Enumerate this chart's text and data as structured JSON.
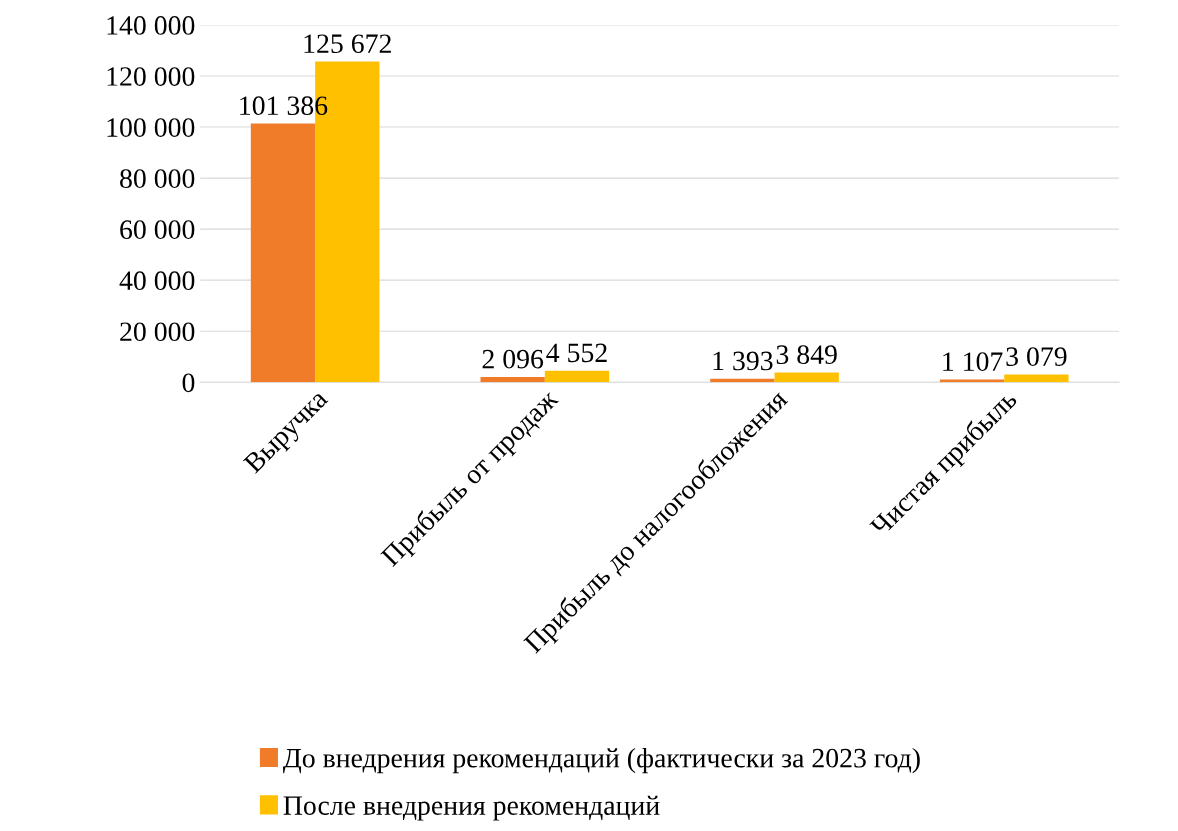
{
  "chart_data": {
    "type": "bar",
    "categories": [
      "Выручка",
      "Прибыль от продаж",
      "Прибыль до налогообложения",
      "Чистая прибыль"
    ],
    "series": [
      {
        "name": "До внедрения рекомендаций (фактически за 2023 год)",
        "color": "#f07c2a",
        "values": [
          101386,
          2096,
          1393,
          1107
        ],
        "value_labels": [
          "101 386",
          "2 096",
          "1 393",
          "1 107"
        ]
      },
      {
        "name": "После внедрения рекомендаций",
        "color": "#ffc000",
        "values": [
          125672,
          4552,
          3849,
          3079
        ],
        "value_labels": [
          "125 672",
          "4 552",
          "3 849",
          "3 079"
        ]
      }
    ],
    "ylim": [
      0,
      140000
    ],
    "yticks": [
      {
        "value": 0,
        "label": "0"
      },
      {
        "value": 20000,
        "label": "20 000"
      },
      {
        "value": 40000,
        "label": "40 000"
      },
      {
        "value": 60000,
        "label": "60 000"
      },
      {
        "value": 80000,
        "label": "80 000"
      },
      {
        "value": 100000,
        "label": "100 000"
      },
      {
        "value": 120000,
        "label": "120 000"
      },
      {
        "value": 140000,
        "label": "140 000"
      }
    ],
    "grid": "y",
    "legend": "bottom"
  }
}
